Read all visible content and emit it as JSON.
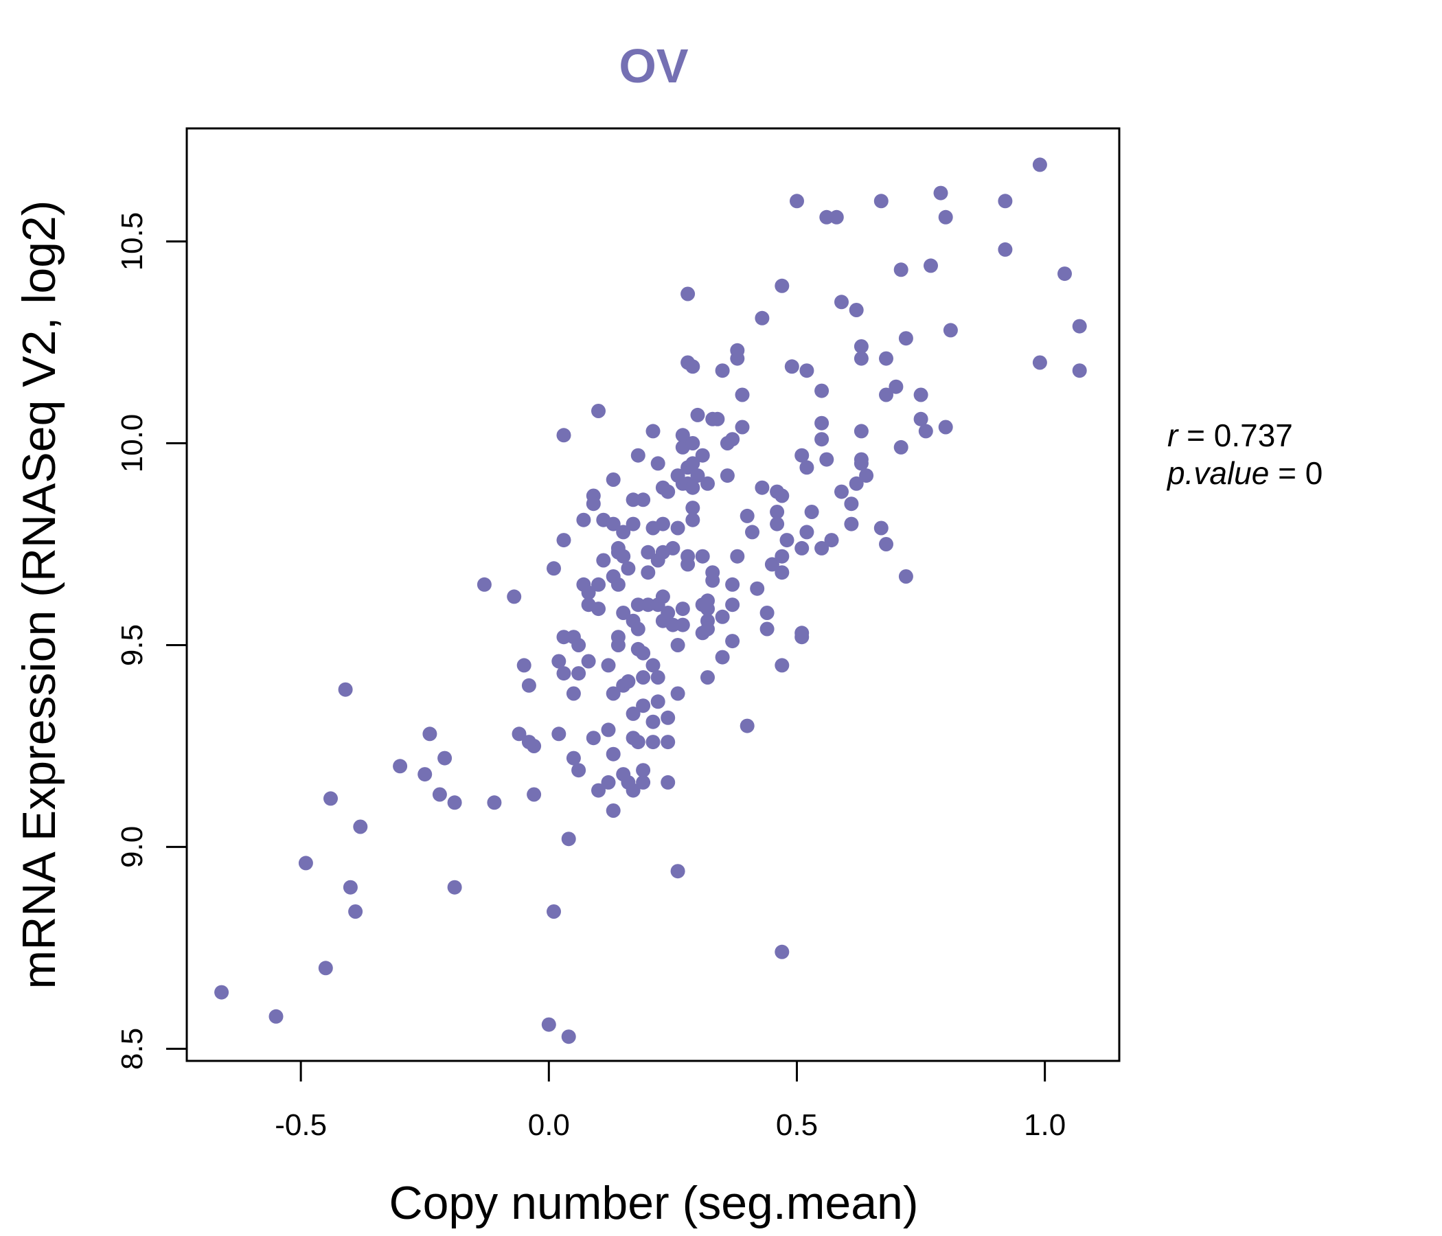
{
  "chart_data": {
    "type": "scatter",
    "title": "OV",
    "xlabel": "Copy number (seg.mean)",
    "ylabel": "mRNA Expression (RNASeq V2, log2)",
    "xlim": [
      -0.73,
      1.15
    ],
    "ylim": [
      8.47,
      10.78
    ],
    "xticks": [
      -0.5,
      0.0,
      0.5,
      1.0
    ],
    "xtick_labels": [
      "-0.5",
      "0.0",
      "0.5",
      "1.0"
    ],
    "yticks": [
      8.5,
      9.0,
      9.5,
      10.0,
      10.5
    ],
    "ytick_labels": [
      "8.5",
      "9.0",
      "9.5",
      "10.0",
      "10.5"
    ],
    "point_color": "#7570b3",
    "grid": false,
    "annotation": {
      "r_label": "r",
      "r_value": "0.737",
      "p_label": "p.value",
      "p_value": "0"
    },
    "points": [
      [
        -0.66,
        8.64
      ],
      [
        -0.55,
        8.58
      ],
      [
        -0.49,
        8.96
      ],
      [
        -0.45,
        8.7
      ],
      [
        -0.44,
        9.12
      ],
      [
        -0.41,
        9.39
      ],
      [
        -0.4,
        8.9
      ],
      [
        -0.39,
        8.84
      ],
      [
        -0.38,
        9.05
      ],
      [
        -0.3,
        9.2
      ],
      [
        -0.25,
        9.18
      ],
      [
        -0.24,
        9.28
      ],
      [
        -0.22,
        9.13
      ],
      [
        -0.21,
        9.22
      ],
      [
        -0.19,
        9.11
      ],
      [
        -0.19,
        8.9
      ],
      [
        -0.11,
        9.11
      ],
      [
        -0.13,
        9.65
      ],
      [
        -0.07,
        9.62
      ],
      [
        -0.06,
        9.28
      ],
      [
        -0.05,
        9.45
      ],
      [
        -0.04,
        9.4
      ],
      [
        -0.03,
        9.25
      ],
      [
        -0.03,
        9.13
      ],
      [
        -0.04,
        9.26
      ],
      [
        0.0,
        8.56
      ],
      [
        0.01,
        9.69
      ],
      [
        0.01,
        8.84
      ],
      [
        0.02,
        9.46
      ],
      [
        0.02,
        9.28
      ],
      [
        0.03,
        9.76
      ],
      [
        0.03,
        10.02
      ],
      [
        0.03,
        9.52
      ],
      [
        0.03,
        9.43
      ],
      [
        0.04,
        8.53
      ],
      [
        0.04,
        9.02
      ],
      [
        0.05,
        9.38
      ],
      [
        0.05,
        9.52
      ],
      [
        0.05,
        9.22
      ],
      [
        0.06,
        9.5
      ],
      [
        0.06,
        9.43
      ],
      [
        0.06,
        9.19
      ],
      [
        0.07,
        9.65
      ],
      [
        0.07,
        9.81
      ],
      [
        0.08,
        9.46
      ],
      [
        0.08,
        9.6
      ],
      [
        0.08,
        9.63
      ],
      [
        0.09,
        9.27
      ],
      [
        0.09,
        9.87
      ],
      [
        0.09,
        9.85
      ],
      [
        0.1,
        9.65
      ],
      [
        0.1,
        9.59
      ],
      [
        0.1,
        9.14
      ],
      [
        0.1,
        10.08
      ],
      [
        0.11,
        9.71
      ],
      [
        0.11,
        9.81
      ],
      [
        0.12,
        9.45
      ],
      [
        0.12,
        9.29
      ],
      [
        0.12,
        9.16
      ],
      [
        0.13,
        9.8
      ],
      [
        0.13,
        9.67
      ],
      [
        0.13,
        9.38
      ],
      [
        0.13,
        9.09
      ],
      [
        0.13,
        9.23
      ],
      [
        0.13,
        9.91
      ],
      [
        0.14,
        9.74
      ],
      [
        0.14,
        9.73
      ],
      [
        0.14,
        9.5
      ],
      [
        0.14,
        9.52
      ],
      [
        0.14,
        9.65
      ],
      [
        0.15,
        9.72
      ],
      [
        0.15,
        9.78
      ],
      [
        0.15,
        9.58
      ],
      [
        0.15,
        9.4
      ],
      [
        0.15,
        9.18
      ],
      [
        0.16,
        9.41
      ],
      [
        0.16,
        9.16
      ],
      [
        0.16,
        9.69
      ],
      [
        0.17,
        9.8
      ],
      [
        0.17,
        9.27
      ],
      [
        0.17,
        9.86
      ],
      [
        0.17,
        9.33
      ],
      [
        0.17,
        9.56
      ],
      [
        0.17,
        9.14
      ],
      [
        0.18,
        9.97
      ],
      [
        0.18,
        9.54
      ],
      [
        0.18,
        9.49
      ],
      [
        0.18,
        9.6
      ],
      [
        0.18,
        9.26
      ],
      [
        0.19,
        9.16
      ],
      [
        0.19,
        9.42
      ],
      [
        0.19,
        9.86
      ],
      [
        0.19,
        9.35
      ],
      [
        0.19,
        9.48
      ],
      [
        0.19,
        9.19
      ],
      [
        0.2,
        9.68
      ],
      [
        0.2,
        9.6
      ],
      [
        0.2,
        9.73
      ],
      [
        0.21,
        10.03
      ],
      [
        0.21,
        9.79
      ],
      [
        0.21,
        9.45
      ],
      [
        0.21,
        9.31
      ],
      [
        0.21,
        9.26
      ],
      [
        0.22,
        9.71
      ],
      [
        0.22,
        9.95
      ],
      [
        0.22,
        9.36
      ],
      [
        0.22,
        9.6
      ],
      [
        0.22,
        9.42
      ],
      [
        0.23,
        9.8
      ],
      [
        0.23,
        9.89
      ],
      [
        0.23,
        9.73
      ],
      [
        0.23,
        9.62
      ],
      [
        0.23,
        9.56
      ],
      [
        0.24,
        9.32
      ],
      [
        0.24,
        9.88
      ],
      [
        0.24,
        9.16
      ],
      [
        0.24,
        9.26
      ],
      [
        0.24,
        9.58
      ],
      [
        0.25,
        9.55
      ],
      [
        0.25,
        9.74
      ],
      [
        0.26,
        8.94
      ],
      [
        0.26,
        9.79
      ],
      [
        0.26,
        9.5
      ],
      [
        0.26,
        9.92
      ],
      [
        0.26,
        9.38
      ],
      [
        0.27,
        9.55
      ],
      [
        0.27,
        9.9
      ],
      [
        0.27,
        9.59
      ],
      [
        0.27,
        9.99
      ],
      [
        0.27,
        10.02
      ],
      [
        0.28,
        9.72
      ],
      [
        0.28,
        9.7
      ],
      [
        0.28,
        9.94
      ],
      [
        0.28,
        10.2
      ],
      [
        0.28,
        10.37
      ],
      [
        0.28,
        9.9
      ],
      [
        0.29,
        10.19
      ],
      [
        0.29,
        9.89
      ],
      [
        0.29,
        10.0
      ],
      [
        0.29,
        9.84
      ],
      [
        0.29,
        9.95
      ],
      [
        0.29,
        9.81
      ],
      [
        0.3,
        9.92
      ],
      [
        0.3,
        10.07
      ],
      [
        0.31,
        9.6
      ],
      [
        0.31,
        9.72
      ],
      [
        0.31,
        9.53
      ],
      [
        0.31,
        9.97
      ],
      [
        0.32,
        9.9
      ],
      [
        0.32,
        9.56
      ],
      [
        0.32,
        9.59
      ],
      [
        0.32,
        9.61
      ],
      [
        0.32,
        9.54
      ],
      [
        0.32,
        9.42
      ],
      [
        0.33,
        9.68
      ],
      [
        0.33,
        9.66
      ],
      [
        0.33,
        10.06
      ],
      [
        0.34,
        10.06
      ],
      [
        0.35,
        10.18
      ],
      [
        0.35,
        9.47
      ],
      [
        0.35,
        9.57
      ],
      [
        0.36,
        9.92
      ],
      [
        0.36,
        10.0
      ],
      [
        0.37,
        9.65
      ],
      [
        0.37,
        9.6
      ],
      [
        0.37,
        10.01
      ],
      [
        0.37,
        9.51
      ],
      [
        0.38,
        10.21
      ],
      [
        0.38,
        10.23
      ],
      [
        0.38,
        9.72
      ],
      [
        0.39,
        10.12
      ],
      [
        0.39,
        10.04
      ],
      [
        0.4,
        9.82
      ],
      [
        0.4,
        9.3
      ],
      [
        0.41,
        9.78
      ],
      [
        0.42,
        9.64
      ],
      [
        0.43,
        9.89
      ],
      [
        0.43,
        10.31
      ],
      [
        0.44,
        9.54
      ],
      [
        0.44,
        9.58
      ],
      [
        0.45,
        9.7
      ],
      [
        0.46,
        9.8
      ],
      [
        0.46,
        9.83
      ],
      [
        0.46,
        9.88
      ],
      [
        0.47,
        9.45
      ],
      [
        0.47,
        9.68
      ],
      [
        0.47,
        9.72
      ],
      [
        0.47,
        8.74
      ],
      [
        0.47,
        9.87
      ],
      [
        0.47,
        10.39
      ],
      [
        0.48,
        9.76
      ],
      [
        0.49,
        10.19
      ],
      [
        0.5,
        10.6
      ],
      [
        0.51,
        9.53
      ],
      [
        0.51,
        9.97
      ],
      [
        0.51,
        9.52
      ],
      [
        0.51,
        9.74
      ],
      [
        0.52,
        10.18
      ],
      [
        0.52,
        9.94
      ],
      [
        0.52,
        9.78
      ],
      [
        0.53,
        9.83
      ],
      [
        0.55,
        10.13
      ],
      [
        0.55,
        10.05
      ],
      [
        0.55,
        10.01
      ],
      [
        0.55,
        9.74
      ],
      [
        0.56,
        9.96
      ],
      [
        0.56,
        10.56
      ],
      [
        0.57,
        9.76
      ],
      [
        0.58,
        10.56
      ],
      [
        0.59,
        10.35
      ],
      [
        0.59,
        9.88
      ],
      [
        0.61,
        9.8
      ],
      [
        0.61,
        9.85
      ],
      [
        0.62,
        10.33
      ],
      [
        0.62,
        9.9
      ],
      [
        0.63,
        10.21
      ],
      [
        0.63,
        10.24
      ],
      [
        0.63,
        10.03
      ],
      [
        0.63,
        9.96
      ],
      [
        0.63,
        9.95
      ],
      [
        0.64,
        9.92
      ],
      [
        0.67,
        10.6
      ],
      [
        0.67,
        9.79
      ],
      [
        0.68,
        10.21
      ],
      [
        0.68,
        9.75
      ],
      [
        0.68,
        10.12
      ],
      [
        0.7,
        10.14
      ],
      [
        0.71,
        10.43
      ],
      [
        0.71,
        9.99
      ],
      [
        0.72,
        10.26
      ],
      [
        0.72,
        9.67
      ],
      [
        0.75,
        10.06
      ],
      [
        0.75,
        10.12
      ],
      [
        0.76,
        10.03
      ],
      [
        0.77,
        10.44
      ],
      [
        0.79,
        10.62
      ],
      [
        0.8,
        10.56
      ],
      [
        0.8,
        10.04
      ],
      [
        0.81,
        10.28
      ],
      [
        0.92,
        10.6
      ],
      [
        0.92,
        10.48
      ],
      [
        0.99,
        10.2
      ],
      [
        0.99,
        10.69
      ],
      [
        1.04,
        10.42
      ],
      [
        1.07,
        10.29
      ],
      [
        1.07,
        10.18
      ]
    ]
  }
}
